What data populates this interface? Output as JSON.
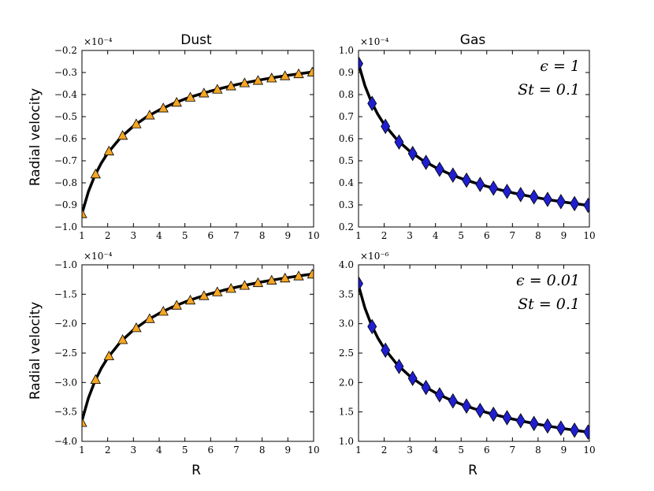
{
  "figure": {
    "xlabel": "R",
    "ylabel": "Radial velocity",
    "column_titles": [
      "Dust",
      "Gas"
    ]
  },
  "chart_data": [
    {
      "type": "line",
      "panel": "top-left",
      "title": "Dust",
      "xlabel": "",
      "ylabel": "Radial velocity",
      "xlim": [
        1,
        10
      ],
      "ylim": [
        -1.0,
        -0.2
      ],
      "y_multiplier": "×10⁻⁴",
      "xticks": [
        1,
        2,
        3,
        4,
        5,
        6,
        7,
        8,
        9,
        10
      ],
      "yticks": [
        -1.0,
        -0.9,
        -0.8,
        -0.7,
        -0.6,
        -0.5,
        -0.4,
        -0.3,
        -0.2
      ],
      "yticklabels": [
        "−1.0",
        "−0.9",
        "−0.8",
        "−0.7",
        "−0.6",
        "−0.5",
        "−0.4",
        "−0.3",
        "−0.2"
      ],
      "series": [
        {
          "kind": "curve",
          "color": "#000000",
          "x": [
            1.0,
            1.25,
            1.5,
            1.75,
            2.0,
            2.5,
            3.0,
            3.5,
            4.0,
            4.5,
            5.0,
            5.5,
            6.0,
            6.5,
            7.0,
            7.5,
            8.0,
            8.5,
            9.0,
            9.5,
            10.0
          ],
          "values": [
            -0.94,
            -0.84,
            -0.767,
            -0.711,
            -0.665,
            -0.595,
            -0.543,
            -0.502,
            -0.47,
            -0.443,
            -0.42,
            -0.401,
            -0.384,
            -0.369,
            -0.355,
            -0.343,
            -0.332,
            -0.322,
            -0.313,
            -0.305,
            -0.297
          ]
        },
        {
          "kind": "markers",
          "marker": "triangle",
          "color": "#f5a623",
          "x": [
            1.0,
            1.53,
            2.05,
            2.58,
            3.11,
            3.63,
            4.16,
            4.68,
            5.21,
            5.74,
            6.26,
            6.79,
            7.32,
            7.84,
            8.37,
            8.89,
            9.42,
            9.95
          ],
          "values": [
            -0.94,
            -0.76,
            -0.656,
            -0.585,
            -0.533,
            -0.493,
            -0.461,
            -0.435,
            -0.412,
            -0.393,
            -0.376,
            -0.361,
            -0.347,
            -0.336,
            -0.325,
            -0.315,
            -0.306,
            -0.298
          ]
        }
      ]
    },
    {
      "type": "line",
      "panel": "top-right",
      "title": "Gas",
      "xlabel": "",
      "ylabel": "",
      "xlim": [
        1,
        10
      ],
      "ylim": [
        0.2,
        1.0
      ],
      "y_multiplier": "×10⁻⁴",
      "xticks": [
        1,
        2,
        3,
        4,
        5,
        6,
        7,
        8,
        9,
        10
      ],
      "yticks": [
        0.2,
        0.3,
        0.4,
        0.5,
        0.6,
        0.7,
        0.8,
        0.9,
        1.0
      ],
      "yticklabels": [
        "0.2",
        "0.3",
        "0.4",
        "0.5",
        "0.6",
        "0.7",
        "0.8",
        "0.9",
        "1.0"
      ],
      "annotations": [
        "ϵ = 1",
        "St = 0.1"
      ],
      "series": [
        {
          "kind": "curve",
          "color": "#000000",
          "x": [
            1.0,
            1.25,
            1.5,
            1.75,
            2.0,
            2.5,
            3.0,
            3.5,
            4.0,
            4.5,
            5.0,
            5.5,
            6.0,
            6.5,
            7.0,
            7.5,
            8.0,
            8.5,
            9.0,
            9.5,
            10.0
          ],
          "values": [
            0.94,
            0.84,
            0.767,
            0.711,
            0.665,
            0.595,
            0.543,
            0.502,
            0.47,
            0.443,
            0.42,
            0.401,
            0.384,
            0.369,
            0.355,
            0.343,
            0.332,
            0.322,
            0.313,
            0.305,
            0.297
          ]
        },
        {
          "kind": "markers",
          "marker": "diamond",
          "color": "#1f1fd0",
          "x": [
            1.0,
            1.53,
            2.05,
            2.58,
            3.11,
            3.63,
            4.16,
            4.68,
            5.21,
            5.74,
            6.26,
            6.79,
            7.32,
            7.84,
            8.37,
            8.89,
            9.42,
            9.95
          ],
          "values": [
            0.94,
            0.76,
            0.656,
            0.585,
            0.533,
            0.493,
            0.461,
            0.435,
            0.412,
            0.393,
            0.376,
            0.361,
            0.347,
            0.336,
            0.325,
            0.315,
            0.306,
            0.298
          ]
        }
      ]
    },
    {
      "type": "line",
      "panel": "bottom-left",
      "title": "",
      "xlabel": "R",
      "ylabel": "Radial velocity",
      "xlim": [
        1,
        10
      ],
      "ylim": [
        -4.0,
        -1.0
      ],
      "y_multiplier": "×10⁻⁴",
      "xticks": [
        1,
        2,
        3,
        4,
        5,
        6,
        7,
        8,
        9,
        10
      ],
      "yticks": [
        -4.0,
        -3.5,
        -3.0,
        -2.5,
        -2.0,
        -1.5,
        -1.0
      ],
      "yticklabels": [
        "−4.0",
        "−3.5",
        "−3.0",
        "−2.5",
        "−2.0",
        "−1.5",
        "−1.0"
      ],
      "series": [
        {
          "kind": "curve",
          "color": "#000000",
          "x": [
            1.0,
            1.25,
            1.5,
            1.75,
            2.0,
            2.5,
            3.0,
            3.5,
            4.0,
            4.5,
            5.0,
            5.5,
            6.0,
            6.5,
            7.0,
            7.5,
            8.0,
            8.5,
            9.0,
            9.5,
            10.0
          ],
          "values": [
            -3.65,
            -3.265,
            -2.98,
            -2.759,
            -2.581,
            -2.308,
            -2.107,
            -1.951,
            -1.825,
            -1.721,
            -1.632,
            -1.556,
            -1.49,
            -1.432,
            -1.38,
            -1.333,
            -1.29,
            -1.252,
            -1.217,
            -1.184,
            -1.154
          ]
        },
        {
          "kind": "markers",
          "marker": "triangle",
          "color": "#f5a623",
          "x": [
            1.0,
            1.53,
            2.05,
            2.58,
            3.11,
            3.63,
            4.16,
            4.68,
            5.21,
            5.74,
            6.26,
            6.79,
            7.32,
            7.84,
            8.37,
            8.89,
            9.42,
            9.95
          ],
          "values": [
            -3.68,
            -2.95,
            -2.549,
            -2.272,
            -2.07,
            -1.915,
            -1.79,
            -1.687,
            -1.6,
            -1.525,
            -1.46,
            -1.402,
            -1.35,
            -1.304,
            -1.262,
            -1.225,
            -1.19,
            -1.158
          ]
        }
      ]
    },
    {
      "type": "line",
      "panel": "bottom-right",
      "title": "",
      "xlabel": "R",
      "ylabel": "",
      "xlim": [
        1,
        10
      ],
      "ylim": [
        1.0,
        4.0
      ],
      "y_multiplier": "×10⁻⁶",
      "xticks": [
        1,
        2,
        3,
        4,
        5,
        6,
        7,
        8,
        9,
        10
      ],
      "yticks": [
        1.0,
        1.5,
        2.0,
        2.5,
        3.0,
        3.5,
        4.0
      ],
      "yticklabels": [
        "1.0",
        "1.5",
        "2.0",
        "2.5",
        "3.0",
        "3.5",
        "4.0"
      ],
      "annotations": [
        "ϵ = 0.01",
        "St = 0.1"
      ],
      "series": [
        {
          "kind": "curve",
          "color": "#000000",
          "x": [
            1.0,
            1.25,
            1.5,
            1.75,
            2.0,
            2.5,
            3.0,
            3.5,
            4.0,
            4.5,
            5.0,
            5.5,
            6.0,
            6.5,
            7.0,
            7.5,
            8.0,
            8.5,
            9.0,
            9.5,
            10.0
          ],
          "values": [
            3.65,
            3.265,
            2.98,
            2.759,
            2.581,
            2.308,
            2.107,
            1.951,
            1.825,
            1.721,
            1.632,
            1.556,
            1.49,
            1.432,
            1.38,
            1.333,
            1.29,
            1.252,
            1.217,
            1.184,
            1.154
          ]
        },
        {
          "kind": "markers",
          "marker": "diamond",
          "color": "#1f1fd0",
          "x": [
            1.0,
            1.53,
            2.05,
            2.58,
            3.11,
            3.63,
            4.16,
            4.68,
            5.21,
            5.74,
            6.26,
            6.79,
            7.32,
            7.84,
            8.37,
            8.89,
            9.42,
            9.95
          ],
          "values": [
            3.68,
            2.95,
            2.549,
            2.272,
            2.07,
            1.915,
            1.79,
            1.687,
            1.6,
            1.525,
            1.46,
            1.402,
            1.35,
            1.304,
            1.262,
            1.225,
            1.19,
            1.158
          ]
        }
      ]
    }
  ]
}
